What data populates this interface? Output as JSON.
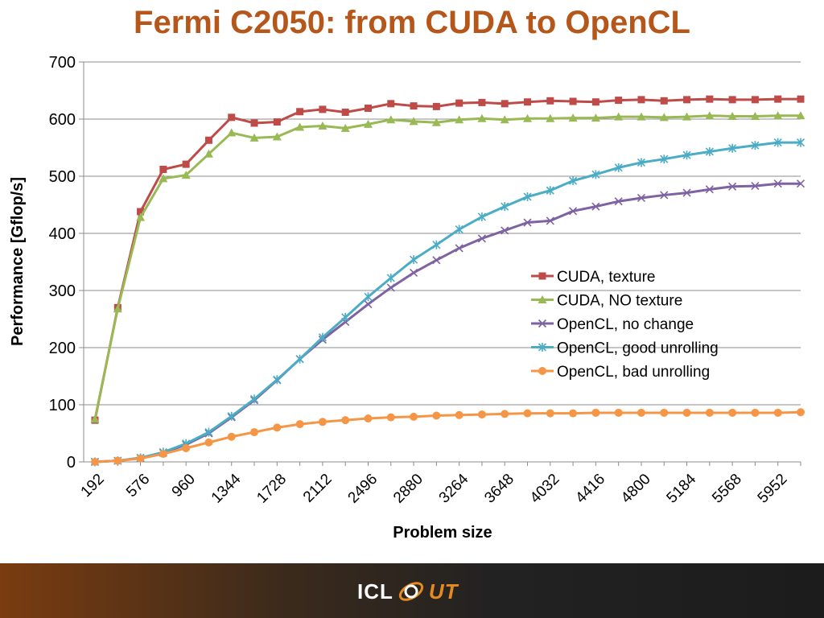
{
  "slide": {
    "title": "Fermi C2050: from CUDA to OpenCL"
  },
  "footer": {
    "logo_left": "ICL",
    "logo_right": "UT",
    "band_color_start": "#7a3c10",
    "band_color_end": "#1c1c1c"
  },
  "chart_data": {
    "type": "line",
    "xlabel": "Problem size",
    "ylabel": "Performance [Gflop/s]",
    "ylim": [
      0,
      700
    ],
    "yticks": [
      0,
      100,
      200,
      300,
      400,
      500,
      600,
      700
    ],
    "grid": true,
    "legend_position": "right-center",
    "x": [
      192,
      384,
      576,
      768,
      960,
      1152,
      1344,
      1536,
      1728,
      1920,
      2112,
      2304,
      2496,
      2688,
      2880,
      3072,
      3264,
      3456,
      3648,
      3840,
      4032,
      4224,
      4416,
      4608,
      4800,
      4992,
      5184,
      5376,
      5568,
      5760,
      5952,
      6144
    ],
    "xtick_labels": [
      "192",
      "576",
      "960",
      "1344",
      "1728",
      "2112",
      "2496",
      "2880",
      "3264",
      "3648",
      "4032",
      "4416",
      "4800",
      "5184",
      "5568",
      "5952"
    ],
    "series": [
      {
        "name": "CUDA, texture",
        "color": "#be4b48",
        "marker": "square",
        "values": [
          73,
          270,
          438,
          512,
          521,
          563,
          603,
          593,
          595,
          613,
          617,
          612,
          619,
          627,
          623,
          622,
          628,
          629,
          627,
          630,
          632,
          631,
          630,
          633,
          634,
          632,
          634,
          635,
          634,
          634,
          635,
          635
        ]
      },
      {
        "name": "CUDA, NO texture",
        "color": "#98b954",
        "marker": "triangle",
        "values": [
          75,
          268,
          428,
          496,
          502,
          539,
          576,
          567,
          569,
          586,
          588,
          584,
          591,
          599,
          596,
          594,
          599,
          601,
          599,
          601,
          601,
          602,
          602,
          604,
          604,
          603,
          604,
          606,
          605,
          605,
          606,
          606
        ]
      },
      {
        "name": "OpenCL, no change",
        "color": "#7e62a1",
        "marker": "x",
        "values": [
          0,
          2,
          7,
          16,
          30,
          50,
          78,
          108,
          143,
          180,
          214,
          245,
          276,
          305,
          331,
          353,
          374,
          391,
          405,
          419,
          422,
          439,
          447,
          456,
          462,
          467,
          471,
          477,
          482,
          483,
          487,
          487
        ]
      },
      {
        "name": "OpenCL, good unrolling",
        "color": "#4aacc5",
        "marker": "star",
        "values": [
          0,
          2,
          7,
          17,
          32,
          52,
          80,
          110,
          144,
          180,
          218,
          253,
          289,
          322,
          354,
          380,
          407,
          429,
          447,
          464,
          475,
          492,
          503,
          515,
          524,
          530,
          537,
          543,
          549,
          554,
          559,
          559
        ]
      },
      {
        "name": "OpenCL, bad unrolling",
        "color": "#f59646",
        "marker": "circle",
        "values": [
          0,
          2,
          6,
          14,
          24,
          34,
          44,
          52,
          60,
          66,
          70,
          73,
          76,
          78,
          79,
          81,
          82,
          83,
          84,
          85,
          85,
          85,
          86,
          86,
          86,
          86,
          86,
          86,
          86,
          86,
          86,
          87
        ]
      }
    ]
  }
}
